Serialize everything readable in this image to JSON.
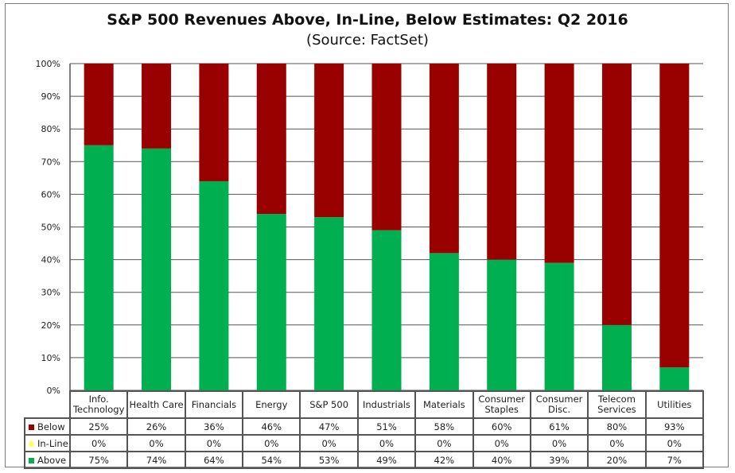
{
  "chart_data": {
    "type": "bar",
    "stacked": true,
    "normalized": true,
    "title": "S&P 500 Revenues Above, In-Line, Below Estimates: Q2 2016",
    "subtitle": "(Source: FactSet)",
    "xlabel": "",
    "ylabel": "",
    "ylim": [
      0,
      100
    ],
    "yticks": [
      "0%",
      "10%",
      "20%",
      "30%",
      "40%",
      "50%",
      "60%",
      "70%",
      "80%",
      "90%",
      "100%"
    ],
    "grid": true,
    "legend_placement": "data-table-left",
    "categories": [
      "Info. Technology",
      "Health Care",
      "Financials",
      "Energy",
      "S&P 500",
      "Industrials",
      "Materials",
      "Consumer Staples",
      "Consumer Disc.",
      "Telecom Services",
      "Utilities"
    ],
    "category_lines": [
      [
        "Info.",
        "Technology"
      ],
      [
        "Health Care"
      ],
      [
        "Financials"
      ],
      [
        "Energy"
      ],
      [
        "S&P 500"
      ],
      [
        "Industrials"
      ],
      [
        "Materials"
      ],
      [
        "Consumer",
        "Staples"
      ],
      [
        "Consumer",
        "Disc."
      ],
      [
        "Telecom",
        "Services"
      ],
      [
        "Utilities"
      ]
    ],
    "series": [
      {
        "name": "Below",
        "color": "#990000",
        "values": [
          25,
          26,
          36,
          46,
          47,
          51,
          58,
          60,
          61,
          80,
          93
        ],
        "labels": [
          "25%",
          "26%",
          "36%",
          "46%",
          "47%",
          "51%",
          "58%",
          "60%",
          "61%",
          "80%",
          "93%"
        ]
      },
      {
        "name": "In-Line",
        "color": "#ffff66",
        "values": [
          0,
          0,
          0,
          0,
          0,
          0,
          0,
          0,
          0,
          0,
          0
        ],
        "labels": [
          "0%",
          "0%",
          "0%",
          "0%",
          "0%",
          "0%",
          "0%",
          "0%",
          "0%",
          "0%",
          "0%"
        ]
      },
      {
        "name": "Above",
        "color": "#00b050",
        "values": [
          75,
          74,
          64,
          54,
          53,
          49,
          42,
          40,
          39,
          20,
          7
        ],
        "labels": [
          "75%",
          "74%",
          "64%",
          "54%",
          "53%",
          "49%",
          "42%",
          "40%",
          "39%",
          "20%",
          "7%"
        ]
      }
    ]
  }
}
